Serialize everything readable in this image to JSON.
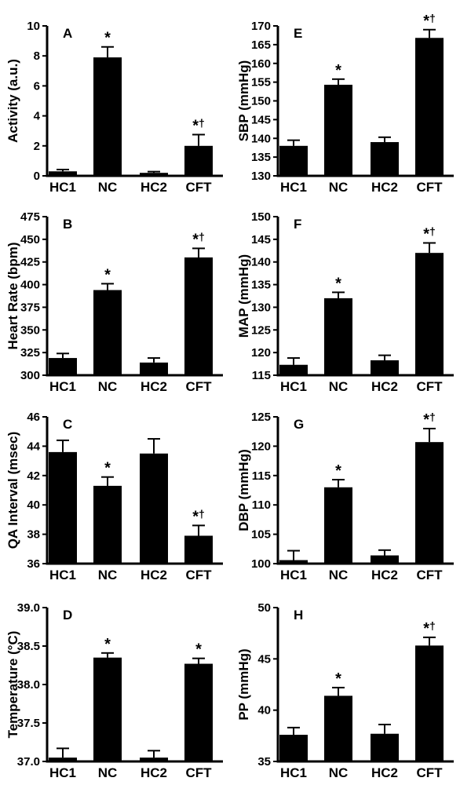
{
  "chart_data": [
    {
      "type": "bar",
      "panel": "A",
      "ylabel": "Activity (a.u.)",
      "ylim": [
        0,
        10
      ],
      "yticks": [
        "0",
        "2",
        "4",
        "6",
        "8",
        "10"
      ],
      "categories": [
        "HC1",
        "NC",
        "HC2",
        "CFT"
      ],
      "values": [
        0.3,
        7.9,
        0.2,
        2.0
      ],
      "errors": [
        0.12,
        0.7,
        0.08,
        0.75
      ],
      "markers": [
        "",
        "*",
        "",
        "*†"
      ]
    },
    {
      "type": "bar",
      "panel": "B",
      "ylabel": "Heart Rate (bpm)",
      "ylim": [
        300,
        475
      ],
      "yticks": [
        "300",
        "325",
        "350",
        "375",
        "400",
        "425",
        "450",
        "475"
      ],
      "categories": [
        "HC1",
        "NC",
        "HC2",
        "CFT"
      ],
      "values": [
        319,
        394,
        314,
        430
      ],
      "errors": [
        5,
        7,
        5,
        10
      ],
      "markers": [
        "",
        "*",
        "",
        "*†"
      ]
    },
    {
      "type": "bar",
      "panel": "C",
      "ylabel": "QA Interval (msec)",
      "ylim": [
        36,
        46
      ],
      "yticks": [
        "36",
        "38",
        "40",
        "42",
        "44",
        "46"
      ],
      "categories": [
        "HC1",
        "NC",
        "HC2",
        "CFT"
      ],
      "values": [
        43.6,
        41.3,
        43.5,
        37.9
      ],
      "errors": [
        0.8,
        0.6,
        1.0,
        0.7
      ],
      "markers": [
        "",
        "*",
        "",
        "*†"
      ]
    },
    {
      "type": "bar",
      "panel": "D",
      "ylabel": "Temperature (°C)",
      "ylim": [
        37.0,
        39.0
      ],
      "yticks": [
        "37.0",
        "37.5",
        "38.0",
        "38.5",
        "39.0"
      ],
      "categories": [
        "HC1",
        "NC",
        "HC2",
        "CFT"
      ],
      "values": [
        37.05,
        38.35,
        37.05,
        38.27
      ],
      "errors": [
        0.12,
        0.06,
        0.09,
        0.07
      ],
      "markers": [
        "",
        "*",
        "",
        "*"
      ]
    },
    {
      "type": "bar",
      "panel": "E",
      "ylabel": "SBP (mmHg)",
      "ylim": [
        130,
        170
      ],
      "yticks": [
        "130",
        "135",
        "140",
        "145",
        "150",
        "155",
        "160",
        "165",
        "170"
      ],
      "categories": [
        "HC1",
        "NC",
        "HC2",
        "CFT"
      ],
      "values": [
        138,
        154.3,
        139,
        166.8
      ],
      "errors": [
        1.5,
        1.5,
        1.3,
        2.2
      ],
      "markers": [
        "",
        "*",
        "",
        "*†"
      ]
    },
    {
      "type": "bar",
      "panel": "F",
      "ylabel": "MAP (mmHg)",
      "ylim": [
        115,
        150
      ],
      "yticks": [
        "115",
        "120",
        "125",
        "130",
        "135",
        "140",
        "145",
        "150"
      ],
      "categories": [
        "HC1",
        "NC",
        "HC2",
        "CFT"
      ],
      "values": [
        117.3,
        132,
        118.3,
        142
      ],
      "errors": [
        1.5,
        1.3,
        1.1,
        2.2
      ],
      "markers": [
        "",
        "*",
        "",
        "*†"
      ]
    },
    {
      "type": "bar",
      "panel": "G",
      "ylabel": "DBP (mmHg)",
      "ylim": [
        100,
        125
      ],
      "yticks": [
        "100",
        "105",
        "110",
        "115",
        "120",
        "125"
      ],
      "categories": [
        "HC1",
        "NC",
        "HC2",
        "CFT"
      ],
      "values": [
        100.6,
        113,
        101.4,
        120.7
      ],
      "errors": [
        1.6,
        1.3,
        0.9,
        2.3
      ],
      "markers": [
        "",
        "*",
        "",
        "*†"
      ]
    },
    {
      "type": "bar",
      "panel": "H",
      "ylabel": "PP (mmHg)",
      "ylim": [
        35,
        50
      ],
      "yticks": [
        "35",
        "40",
        "45",
        "50"
      ],
      "categories": [
        "HC1",
        "NC",
        "HC2",
        "CFT"
      ],
      "values": [
        37.6,
        41.4,
        37.7,
        46.3
      ],
      "errors": [
        0.7,
        0.8,
        0.9,
        0.8
      ],
      "markers": [
        "",
        "*",
        "",
        "*†"
      ]
    }
  ]
}
